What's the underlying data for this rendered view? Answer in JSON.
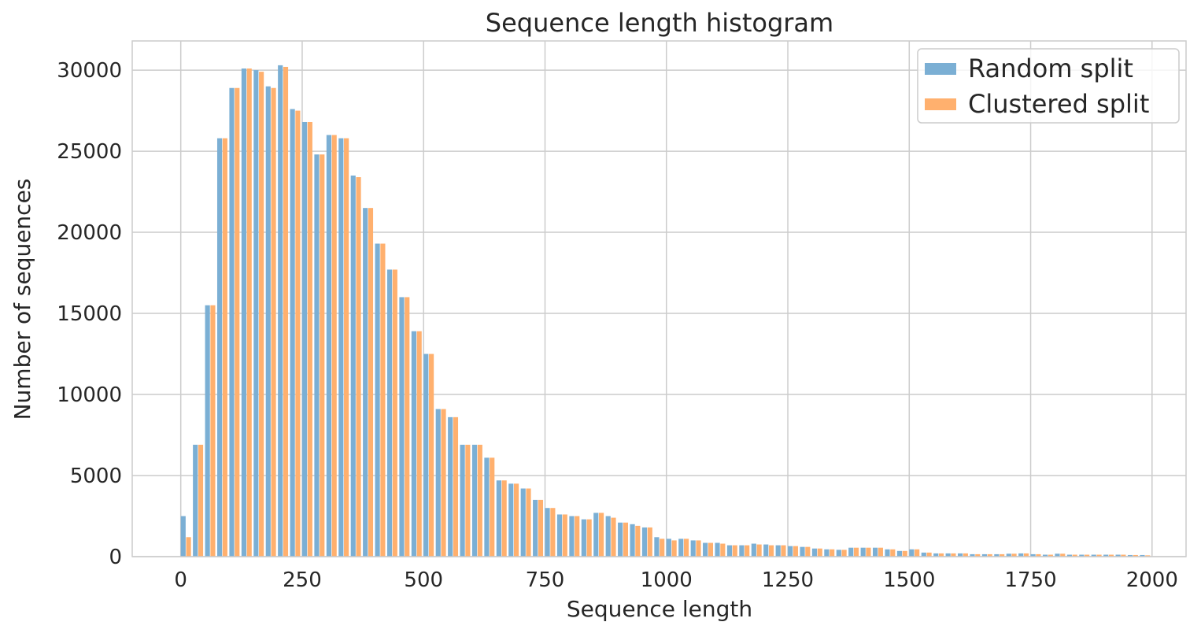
{
  "chart_data": {
    "type": "bar",
    "title": "Sequence length histogram",
    "xlabel": "Sequence length",
    "ylabel": "Number of sequences",
    "xlim": [
      -100,
      2070
    ],
    "ylim": [
      0,
      31800
    ],
    "xticks": [
      0,
      250,
      500,
      750,
      1000,
      1250,
      1500,
      1750,
      2000
    ],
    "yticks": [
      0,
      5000,
      10000,
      15000,
      20000,
      25000,
      30000
    ],
    "grid": true,
    "legend_position": "top-right",
    "bin_width": 25,
    "bin_starts": [
      0,
      25,
      50,
      75,
      100,
      125,
      150,
      175,
      200,
      225,
      250,
      275,
      300,
      325,
      350,
      375,
      400,
      425,
      450,
      475,
      500,
      525,
      550,
      575,
      600,
      625,
      650,
      675,
      700,
      725,
      750,
      775,
      800,
      825,
      850,
      875,
      900,
      925,
      950,
      975,
      1000,
      1025,
      1050,
      1075,
      1100,
      1125,
      1150,
      1175,
      1200,
      1225,
      1250,
      1275,
      1300,
      1325,
      1350,
      1375,
      1400,
      1425,
      1450,
      1475,
      1500,
      1525,
      1550,
      1575,
      1600,
      1625,
      1650,
      1675,
      1700,
      1725,
      1750,
      1775,
      1800,
      1825,
      1850,
      1875,
      1900,
      1925,
      1950,
      1975
    ],
    "series": [
      {
        "name": "Random split",
        "color": "#7bafd4",
        "values": [
          2500,
          6900,
          15500,
          25800,
          28900,
          30100,
          30000,
          29000,
          30300,
          27600,
          26800,
          24800,
          26000,
          25800,
          23500,
          21500,
          19300,
          17700,
          16000,
          13900,
          12500,
          9100,
          8600,
          6900,
          6900,
          6100,
          4700,
          4500,
          4200,
          3500,
          3000,
          2600,
          2500,
          2300,
          2700,
          2500,
          2100,
          2000,
          1800,
          1200,
          1100,
          1100,
          1000,
          850,
          850,
          700,
          700,
          800,
          750,
          700,
          650,
          600,
          500,
          450,
          420,
          550,
          550,
          550,
          450,
          350,
          450,
          250,
          200,
          200,
          200,
          150,
          150,
          150,
          180,
          200,
          150,
          120,
          180,
          120,
          120,
          120,
          120,
          120,
          100,
          100
        ],
        "offsets": [
          0,
          0,
          0,
          0,
          0,
          0,
          0,
          0,
          0,
          0,
          0,
          0,
          0,
          0,
          0,
          0,
          0,
          0,
          0,
          0,
          0,
          0,
          0,
          0,
          0,
          0,
          0,
          0,
          0,
          0,
          0,
          0,
          0,
          0,
          0,
          0,
          0,
          0,
          0,
          0,
          0,
          0,
          0,
          0,
          0,
          0,
          0,
          0,
          0,
          0,
          0,
          0,
          0,
          0,
          0,
          0,
          0,
          0,
          0,
          0,
          0,
          0,
          0,
          0,
          0,
          0,
          0,
          0,
          0,
          0,
          0,
          0,
          0,
          0,
          0,
          0,
          0,
          0,
          0,
          0
        ]
      },
      {
        "name": "Clustered split",
        "color": "#ffb06e",
        "values": [
          1200,
          6900,
          15500,
          25800,
          28900,
          30100,
          29900,
          28900,
          30200,
          27500,
          26800,
          24800,
          26000,
          25800,
          23400,
          21500,
          19300,
          17700,
          16000,
          13900,
          12500,
          9100,
          8600,
          6900,
          6900,
          6100,
          4700,
          4500,
          4200,
          3500,
          3000,
          2600,
          2500,
          2300,
          2700,
          2400,
          2100,
          1900,
          1800,
          1100,
          1000,
          1100,
          1000,
          850,
          800,
          700,
          700,
          750,
          700,
          700,
          650,
          600,
          500,
          450,
          420,
          550,
          550,
          550,
          450,
          350,
          450,
          250,
          200,
          200,
          200,
          150,
          150,
          150,
          180,
          200,
          150,
          120,
          180,
          120,
          120,
          120,
          120,
          120,
          100,
          80
        ]
      }
    ]
  }
}
